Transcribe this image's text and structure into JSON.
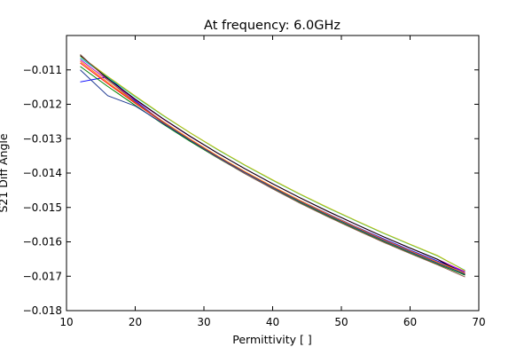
{
  "chart_data": {
    "type": "line",
    "title": "At frequency: 6.0GHz",
    "xlabel": "Permittivity [ ]",
    "ylabel": "S21 Diff Angle",
    "xlim": [
      10,
      70
    ],
    "ylim": [
      -0.018,
      -0.01
    ],
    "x_ticks": [
      "10",
      "20",
      "30",
      "40",
      "50",
      "60",
      "70"
    ],
    "y_ticks": [
      "−0.011",
      "−0.012",
      "−0.013",
      "−0.014",
      "−0.015",
      "−0.016",
      "−0.017",
      "−0.018"
    ],
    "x": [
      12,
      16,
      20,
      24,
      28,
      32,
      36,
      40,
      44,
      48,
      52,
      56,
      60,
      64,
      68
    ],
    "grid": false,
    "legend": "none",
    "series": [
      {
        "color": "#0000ff",
        "values": [
          -0.01135,
          -0.0112,
          -0.0119,
          -0.01251,
          -0.01304,
          -0.01353,
          -0.01398,
          -0.0144,
          -0.0148,
          -0.01518,
          -0.01555,
          -0.0159,
          -0.01624,
          -0.01656,
          -0.01688
        ]
      },
      {
        "color": "#008000",
        "values": [
          -0.0109,
          -0.01148,
          -0.01203,
          -0.01257,
          -0.01308,
          -0.01356,
          -0.01402,
          -0.01445,
          -0.01486,
          -0.01525,
          -0.01562,
          -0.01598,
          -0.01632,
          -0.01665,
          -0.01697
        ]
      },
      {
        "color": "#ff0000",
        "values": [
          -0.0108,
          -0.0114,
          -0.01197,
          -0.01252,
          -0.01304,
          -0.01352,
          -0.01398,
          -0.01441,
          -0.01482,
          -0.01521,
          -0.01558,
          -0.01594,
          -0.01628,
          -0.01661,
          -0.01693
        ]
      },
      {
        "color": "#00bfbf",
        "values": [
          -0.01065,
          -0.01122,
          -0.01178,
          -0.01232,
          -0.01283,
          -0.01332,
          -0.01378,
          -0.01421,
          -0.01462,
          -0.01501,
          -0.01538,
          -0.01574,
          -0.01608,
          -0.01641,
          -0.01683
        ]
      },
      {
        "color": "#bf00bf",
        "values": [
          -0.0107,
          -0.0113,
          -0.01187,
          -0.01242,
          -0.01294,
          -0.01342,
          -0.01388,
          -0.01431,
          -0.01472,
          -0.01511,
          -0.01548,
          -0.01584,
          -0.01618,
          -0.01651,
          -0.01687
        ]
      },
      {
        "color": "#bfbf00",
        "values": [
          -0.0106,
          -0.01119,
          -0.01176,
          -0.01231,
          -0.01283,
          -0.01331,
          -0.01377,
          -0.0142,
          -0.01461,
          -0.015,
          -0.01537,
          -0.01573,
          -0.01607,
          -0.0164,
          -0.01684
        ]
      },
      {
        "color": "#000000",
        "values": [
          -0.01058,
          -0.01125,
          -0.01185,
          -0.01241,
          -0.01293,
          -0.01342,
          -0.01388,
          -0.01431,
          -0.01472,
          -0.01511,
          -0.01548,
          -0.01584,
          -0.01618,
          -0.01651,
          -0.01695
        ]
      },
      {
        "color": "#ff7f0e",
        "values": [
          -0.01075,
          -0.01136,
          -0.01194,
          -0.01249,
          -0.01301,
          -0.0135,
          -0.01396,
          -0.01439,
          -0.0148,
          -0.01519,
          -0.01556,
          -0.01592,
          -0.01626,
          -0.01659,
          -0.01691
        ]
      },
      {
        "color": "#8c564b",
        "values": [
          -0.01055,
          -0.01129,
          -0.01193,
          -0.01251,
          -0.01305,
          -0.01355,
          -0.01402,
          -0.01446,
          -0.01488,
          -0.01527,
          -0.01564,
          -0.016,
          -0.01634,
          -0.01667,
          -0.01702
        ]
      },
      {
        "color": "#1f3a93",
        "values": [
          -0.011,
          -0.01175,
          -0.01205,
          -0.01255,
          -0.01305,
          -0.01353,
          -0.01399,
          -0.01442,
          -0.01483,
          -0.01522,
          -0.01559,
          -0.01595,
          -0.01629,
          -0.01662,
          -0.01694
        ]
      }
    ]
  }
}
